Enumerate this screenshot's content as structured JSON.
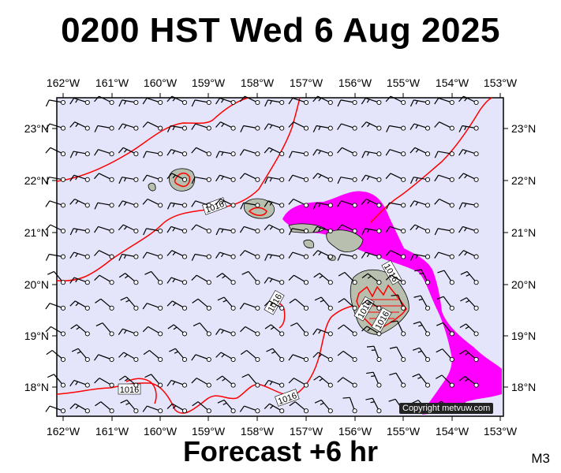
{
  "header": {
    "title": "0200 HST Wed 6 Aug 2025"
  },
  "footer": {
    "forecast_label": "Forecast +6 hr",
    "model_code": "M3",
    "credit": "Copyright metvuw.com"
  },
  "axes": {
    "lon_labels": [
      "162°W",
      "161°W",
      "160°W",
      "159°W",
      "158°W",
      "157°W",
      "156°W",
      "155°W",
      "154°W",
      "153°W"
    ],
    "lat_labels": [
      "23°N",
      "22°N",
      "21°N",
      "20°N",
      "19°N",
      "18°N"
    ]
  },
  "isobars": [
    {
      "label": "1016",
      "where": "near Oahu"
    },
    {
      "label": "1016",
      "where": "south of Oahu"
    },
    {
      "label": "1016",
      "where": "southwest"
    },
    {
      "label": "1016",
      "where": "south"
    },
    {
      "label": "1016",
      "where": "east of Big Island"
    },
    {
      "label": "1016",
      "where": "Big Island west"
    },
    {
      "label": "1016",
      "where": "Big Island east"
    }
  ],
  "colors": {
    "ocean": "#e4e4fb",
    "isobar": "#ff0000",
    "precip_band": "#ff00ff",
    "land": "#b9bfae"
  }
}
